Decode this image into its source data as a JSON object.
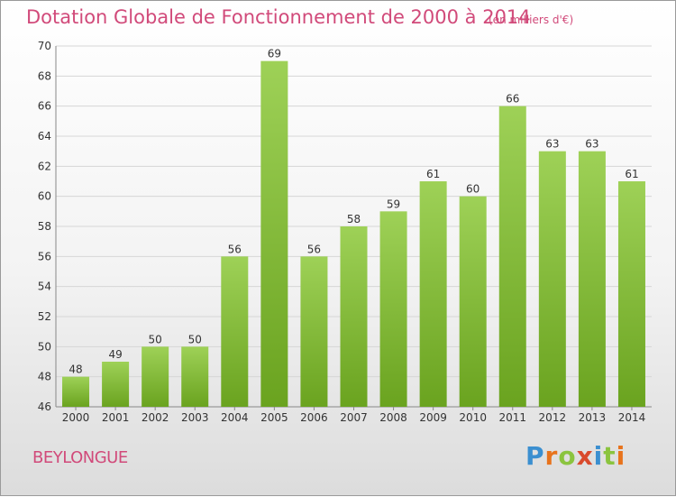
{
  "header": {
    "title": "Dotation Globale de Fonctionnement de 2000 à 2014",
    "unit": "(en milliers d'€)"
  },
  "footer": {
    "commune": "BEYLONGUE",
    "logo_letters": [
      "P",
      "r",
      "o",
      "x",
      "i",
      "t",
      "i"
    ],
    "logo_colors": [
      "#3b8fd0",
      "#e8731c",
      "#8bc43f",
      "#d94a2c",
      "#3b8fd0",
      "#8bc43f",
      "#e8731c"
    ]
  },
  "colors": {
    "title": "#d14a7a",
    "bar_top": "#9ed157",
    "bar_bottom": "#6aa31f"
  },
  "chart_data": {
    "type": "bar",
    "categories": [
      "2000",
      "2001",
      "2002",
      "2003",
      "2004",
      "2005",
      "2006",
      "2007",
      "2008",
      "2009",
      "2010",
      "2011",
      "2012",
      "2013",
      "2014"
    ],
    "values": [
      48,
      49,
      50,
      50,
      56,
      69,
      56,
      58,
      59,
      61,
      60,
      66,
      63,
      63,
      61
    ],
    "ylim": [
      46,
      70
    ],
    "yticks": [
      46,
      48,
      50,
      52,
      54,
      56,
      58,
      60,
      62,
      64,
      66,
      68,
      70
    ],
    "grid": true
  }
}
